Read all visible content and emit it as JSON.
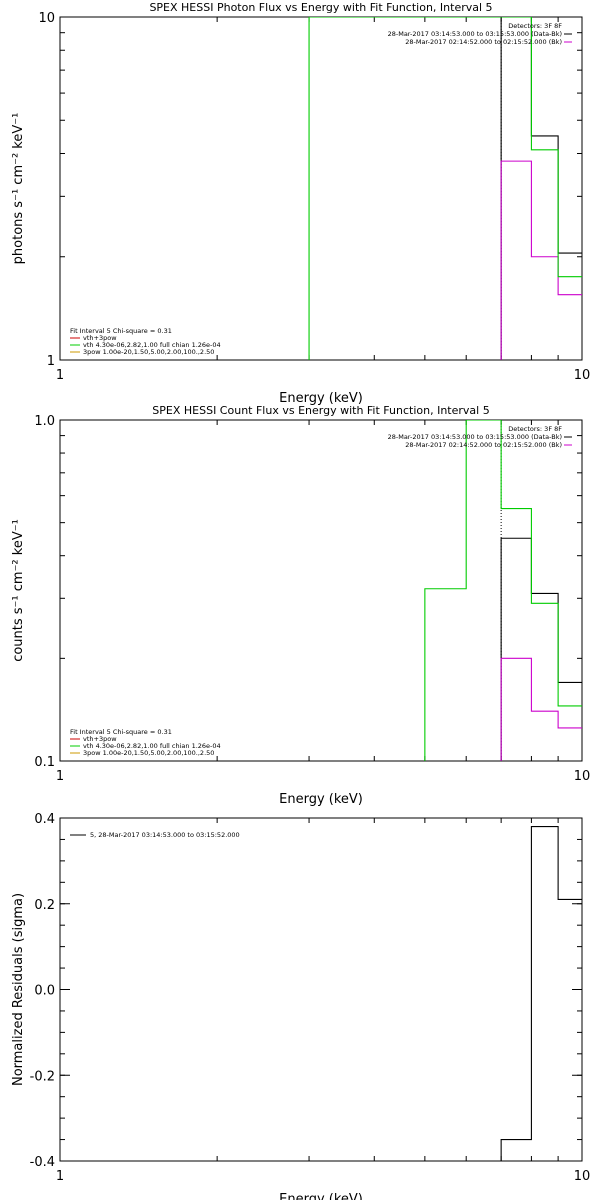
{
  "colors": {
    "data": "#000000",
    "background": "#cc00cc",
    "total": "#00cc00",
    "vth": "#00cc00",
    "3pow": "#cc9900",
    "fit_component_1": "#cc0000",
    "marker": "#cc00cc",
    "residual": "#000000"
  },
  "chart_data": [
    {
      "type": "line",
      "title": "SPEX HESSI Photon Flux vs Energy with Fit Function, Interval 5",
      "xlabel": "Energy (keV)",
      "ylabel": "photons s⁻¹ cm⁻² keV⁻¹",
      "xscale": "log",
      "yscale": "log",
      "xlim": [
        1,
        10
      ],
      "ylim": [
        1,
        10
      ],
      "xticks": [
        "1",
        "10"
      ],
      "yticks": [
        "1",
        "10"
      ],
      "legend_top": [
        "Detectors: 3F 8F",
        "28-Mar-2017 03:14:53.000 to 03:15:53.000 (Data-Bk)",
        "28-Mar-2017 02:14:52.000 to 02:15:52.000 (Bk)"
      ],
      "legend_bottom": [
        "Fit Interval 5   Chi-square = 0.31",
        "vth+3pow",
        "vth 4.30e-06,2.82,1.00  full chian 1.26e-04",
        "3pow 1.00e-20,1.50,5.00,2.00,100.,2.50"
      ],
      "series": [
        {
          "name": "28-Mar-2017 03:14:53.000 to 03:15:53.000 (Data-Bk)",
          "color_key": "data",
          "steps": [
            [
              7,
              8,
              10
            ],
            [
              8,
              9,
              4.5
            ],
            [
              9,
              10,
              2.05
            ]
          ]
        },
        {
          "name": "28-Mar-2017 02:14:52.000 to 02:15:52.000 (Bk)",
          "color_key": "background",
          "steps": [
            [
              7,
              8,
              3.8
            ],
            [
              8,
              9,
              2.0
            ],
            [
              9,
              10,
              1.55
            ]
          ]
        },
        {
          "name": "vth 4.30e-06,2.82,1.00  full chian 1.26e-04",
          "color_key": "vth",
          "steps": [
            [
              3,
              7,
              10
            ],
            [
              7,
              8,
              10
            ],
            [
              8,
              9,
              4.1
            ],
            [
              9,
              10,
              1.75
            ]
          ]
        }
      ],
      "vlines": [
        {
          "x": 7,
          "color_key": "data",
          "dotted": true
        }
      ]
    },
    {
      "type": "line",
      "title": "SPEX HESSI Count Flux vs Energy with Fit Function, Interval 5",
      "xlabel": "Energy (keV)",
      "ylabel": "counts s⁻¹ cm⁻² keV⁻¹",
      "xscale": "log",
      "yscale": "log",
      "xlim": [
        1,
        10
      ],
      "ylim": [
        0.1,
        1.0
      ],
      "xticks": [
        "1",
        "10"
      ],
      "yticks": [
        "0.1",
        "1.0"
      ],
      "legend_top": [
        "Detectors: 3F 8F",
        "28-Mar-2017 03:14:53.000 to 03:15:53.000 (Data-Bk)",
        "28-Mar-2017 02:14:52.000 to 02:15:52.000 (Bk)"
      ],
      "legend_bottom": [
        "Fit Interval 5   Chi-square = 0.31",
        "vth+3pow",
        "vth 4.30e-06,2.82,1.00  full chian 1.26e-04",
        "3pow 1.00e-20,1.50,5.00,2.00,100.,2.50"
      ],
      "series": [
        {
          "name": "28-Mar-2017 03:14:53.000 to 03:15:53.000 (Data-Bk)",
          "color_key": "data",
          "steps": [
            [
              7,
              8,
              0.45
            ],
            [
              8,
              9,
              0.31
            ],
            [
              9,
              10,
              0.17
            ]
          ]
        },
        {
          "name": "28-Mar-2017 02:14:52.000 to 02:15:52.000 (Bk)",
          "color_key": "background",
          "steps": [
            [
              7,
              8,
              0.2
            ],
            [
              8,
              9,
              0.14
            ],
            [
              9,
              10,
              0.125
            ]
          ]
        },
        {
          "name": "vth 4.30e-06,2.82,1.00  full chian 1.26e-04",
          "color_key": "vth",
          "steps": [
            [
              5,
              6,
              0.32
            ],
            [
              6,
              7,
              1.0
            ],
            [
              7,
              8,
              0.55
            ],
            [
              8,
              9,
              0.29
            ],
            [
              9,
              10,
              0.145
            ]
          ]
        }
      ],
      "vlines": [
        {
          "x": 7,
          "color_key": "data",
          "dotted": true
        }
      ]
    },
    {
      "type": "line",
      "title": "",
      "xlabel": "Energy (keV)",
      "ylabel": "Normalized Residuals (sigma)",
      "xscale": "log",
      "yscale": "linear",
      "xlim": [
        1,
        10
      ],
      "ylim": [
        -0.4,
        0.4
      ],
      "xticks": [
        "1",
        "10"
      ],
      "yticks": [
        "-0.4",
        "-0.2",
        "0.0",
        "0.2",
        "0.4"
      ],
      "legend_top": [
        "5, 28-Mar-2017 03:14:53.000 to 03:15:52.000"
      ],
      "series": [
        {
          "name": "5, 28-Mar-2017 03:14:53.000 to 03:15:52.000",
          "color_key": "residual",
          "steps": [
            [
              7,
              8,
              -0.35
            ],
            [
              8,
              9,
              0.38
            ],
            [
              9,
              10,
              0.21
            ]
          ]
        }
      ]
    }
  ]
}
